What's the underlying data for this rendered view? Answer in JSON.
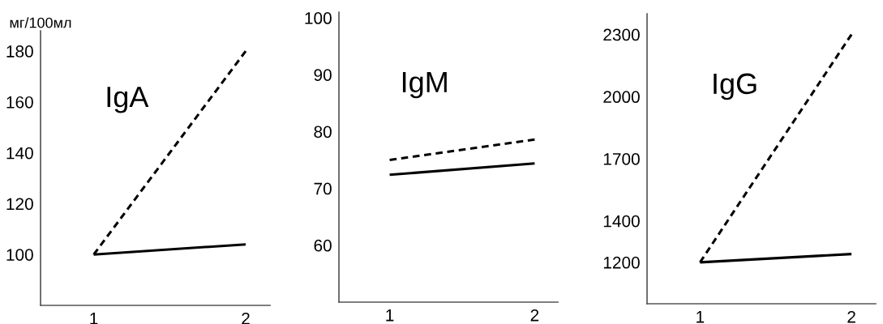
{
  "chart_data": [
    {
      "type": "line",
      "title": "IgA",
      "ylabel": "мг/100мл",
      "categories": [
        "1",
        "2"
      ],
      "ylim": [
        80,
        188
      ],
      "yticks": [
        100,
        120,
        140,
        160,
        180
      ],
      "grid": false,
      "legend": false,
      "marker": "none",
      "series": [
        {
          "color": "#000000",
          "line_style": "dashed",
          "values": [
            100,
            180
          ]
        },
        {
          "color": "#000000",
          "line_style": "solid",
          "values": [
            100,
            104
          ]
        }
      ]
    },
    {
      "type": "line",
      "title": "IgM",
      "categories": [
        "1",
        "2"
      ],
      "ylim": [
        50,
        101
      ],
      "yticks": [
        60,
        70,
        80,
        90,
        100
      ],
      "grid": false,
      "legend": false,
      "marker": "none",
      "series": [
        {
          "color": "#000000",
          "line_style": "dashed",
          "values": [
            75,
            78.6
          ]
        },
        {
          "color": "#000000",
          "line_style": "solid",
          "values": [
            72.4,
            74.4
          ]
        }
      ]
    },
    {
      "type": "line",
      "title": "IgG",
      "categories": [
        "1",
        "2"
      ],
      "ylim": [
        1000,
        2400
      ],
      "yticks": [
        1200,
        1400,
        1700,
        2000,
        2300
      ],
      "grid": false,
      "legend": false,
      "marker": "none",
      "series": [
        {
          "color": "#000000",
          "line_style": "dashed",
          "values": [
            1200,
            2300
          ]
        },
        {
          "color": "#000000",
          "line_style": "solid",
          "values": [
            1200,
            1240
          ]
        }
      ]
    }
  ]
}
